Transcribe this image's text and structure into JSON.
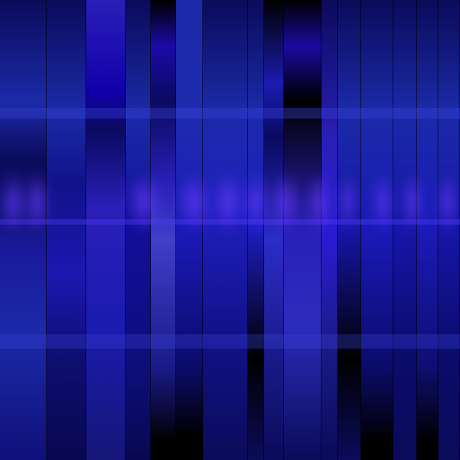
{
  "image": {
    "kind": "abstract-vertical-stripes",
    "palette": {
      "deep_navy": "#0b0b5a",
      "royal_blue": "#1b2aa8",
      "indigo": "#2a1fb8",
      "violet_glow": "#6b3cff",
      "black": "#000000"
    }
  }
}
